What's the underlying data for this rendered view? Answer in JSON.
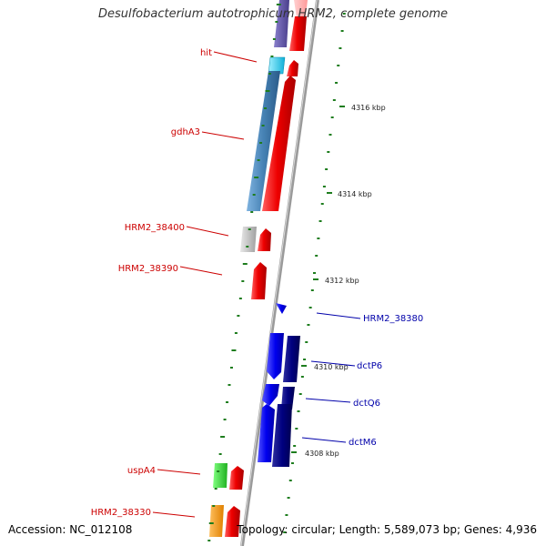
{
  "title": "Desulfobacterium autotrophicum HRM2, complete genome",
  "footer": {
    "accession": "Accession: NC_012108",
    "topology": "Topology: circular; Length: 5,589,073 bp; Genes: 4,936"
  },
  "colors": {
    "backbone": "#999999",
    "tick": "#1e7d1e",
    "red_label": "#cc0000",
    "blue_label": "#0000aa"
  },
  "ticks": [
    {
      "label": "4316 kbp"
    },
    {
      "label": "4314 kbp"
    },
    {
      "label": "4312 kbp"
    },
    {
      "label": "4310 kbp"
    },
    {
      "label": "4308 kbp"
    }
  ],
  "gene_labels": [
    {
      "name": "hit",
      "color": "red"
    },
    {
      "name": "gdhA3",
      "color": "red"
    },
    {
      "name": "HRM2_38400",
      "color": "red"
    },
    {
      "name": "HRM2_38390",
      "color": "red"
    },
    {
      "name": "HRM2_38380",
      "color": "blue"
    },
    {
      "name": "dctP6",
      "color": "blue"
    },
    {
      "name": "dctQ6",
      "color": "blue"
    },
    {
      "name": "dctM6",
      "color": "blue"
    },
    {
      "name": "uspA4",
      "color": "red"
    },
    {
      "name": "HRM2_38330",
      "color": "red"
    }
  ]
}
